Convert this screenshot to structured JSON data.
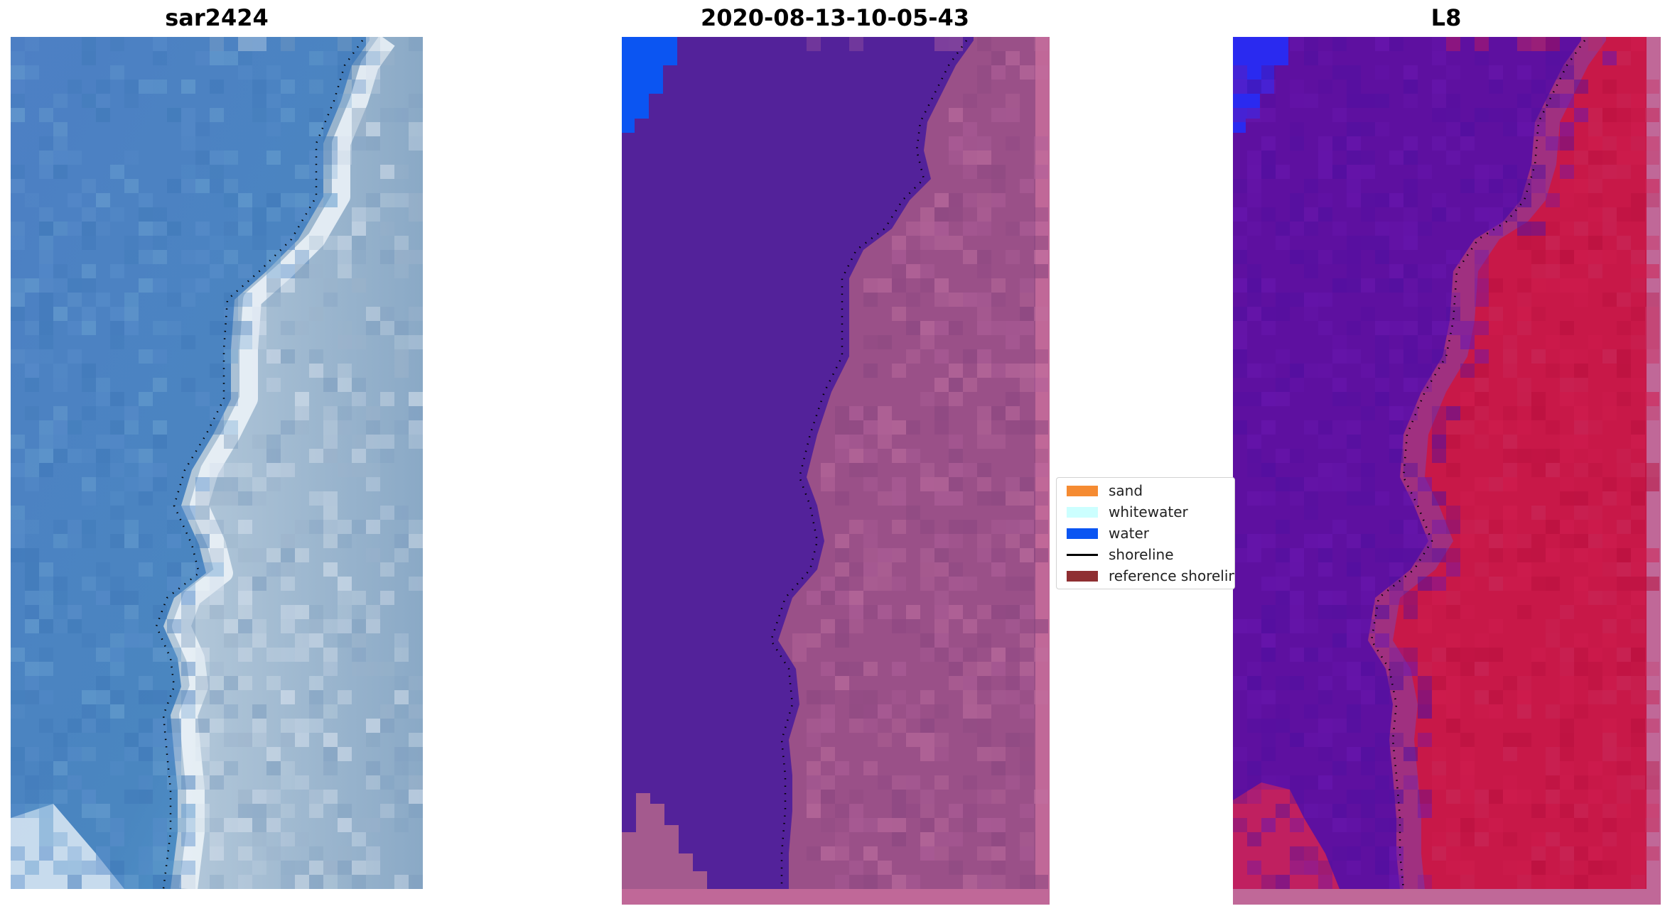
{
  "panels": [
    {
      "title": "sar2424",
      "kind": "rgb-composite"
    },
    {
      "title": "2020-08-13-10-05-43",
      "kind": "classified"
    },
    {
      "title": "L8",
      "kind": "false-color"
    }
  ],
  "legend": {
    "items": [
      {
        "label": "sand",
        "color": "#f58b32"
      },
      {
        "label": "whitewater",
        "color": "#ccffff"
      },
      {
        "label": "water",
        "color": "#0b55f2"
      },
      {
        "label": "shoreline",
        "color": "#000000"
      },
      {
        "label": "reference shoreline",
        "color": "#8f2f32"
      }
    ]
  },
  "colors": {
    "ocean_rgb": "#4a83bf",
    "land_rgb": "#9ab4cc",
    "surf_rgb": "#f4f8fb",
    "ocean_class": "#53229a",
    "land_class": "#9a5088",
    "land_class_light": "#c070a0",
    "frame_class": "#c06898",
    "water_class": "#0b55f2",
    "ocean_nir": "#5e10a0",
    "land_nir": "#c81848",
    "water_nir": "#2a2af0"
  }
}
